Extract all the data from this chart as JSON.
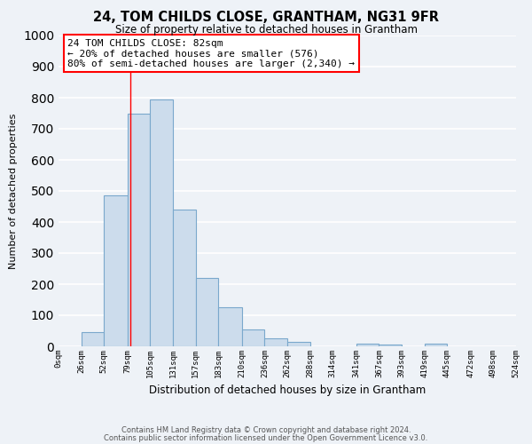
{
  "title": "24, TOM CHILDS CLOSE, GRANTHAM, NG31 9FR",
  "subtitle": "Size of property relative to detached houses in Grantham",
  "xlabel": "Distribution of detached houses by size in Grantham",
  "ylabel": "Number of detached properties",
  "bar_edges": [
    0,
    26,
    52,
    79,
    105,
    131,
    157,
    183,
    210,
    236,
    262,
    288,
    314,
    341,
    367,
    393,
    419,
    445,
    472,
    498,
    524
  ],
  "bar_heights": [
    0,
    45,
    485,
    750,
    795,
    440,
    220,
    125,
    55,
    25,
    15,
    0,
    0,
    10,
    5,
    0,
    10,
    0,
    0,
    0,
    0
  ],
  "bar_color": "#ccdcec",
  "bar_edgecolor": "#7aa8cc",
  "tick_labels": [
    "0sqm",
    "26sqm",
    "52sqm",
    "79sqm",
    "105sqm",
    "131sqm",
    "157sqm",
    "183sqm",
    "210sqm",
    "236sqm",
    "262sqm",
    "288sqm",
    "314sqm",
    "341sqm",
    "367sqm",
    "393sqm",
    "419sqm",
    "445sqm",
    "472sqm",
    "498sqm",
    "524sqm"
  ],
  "ylim": [
    0,
    1000
  ],
  "yticks": [
    0,
    100,
    200,
    300,
    400,
    500,
    600,
    700,
    800,
    900,
    1000
  ],
  "property_size": 82,
  "annotation_line1": "24 TOM CHILDS CLOSE: 82sqm",
  "annotation_line2": "← 20% of detached houses are smaller (576)",
  "annotation_line3": "80% of semi-detached houses are larger (2,340) →",
  "footer1": "Contains HM Land Registry data © Crown copyright and database right 2024.",
  "footer2": "Contains public sector information licensed under the Open Government Licence v3.0.",
  "background_color": "#eef2f7",
  "grid_color": "#ffffff"
}
